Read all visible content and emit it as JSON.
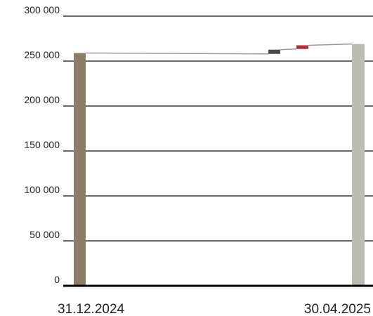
{
  "chart_data": {
    "type": "waterfall",
    "title": "",
    "xlabel": "",
    "ylabel": "",
    "ylim": [
      0,
      300000
    ],
    "yticks": [
      0,
      50000,
      100000,
      150000,
      200000,
      250000,
      300000
    ],
    "ytick_labels": [
      "0",
      "50 000",
      "100 000",
      "150 000",
      "200 000",
      "250 000",
      "300 000"
    ],
    "grid": true,
    "legend": "none",
    "start": {
      "label": "31.12.2024",
      "value": 259000,
      "color": "#8b7e68"
    },
    "steps": [
      {
        "from": 258000,
        "to": 262700,
        "color": "#4a4a4a"
      },
      {
        "from": 263500,
        "to": 267600,
        "color": "#b0303a"
      }
    ],
    "end": {
      "label": "30.04.2025",
      "value": 269000,
      "color": "#bdbcb0"
    },
    "connector_color": "#9a9a9a"
  }
}
